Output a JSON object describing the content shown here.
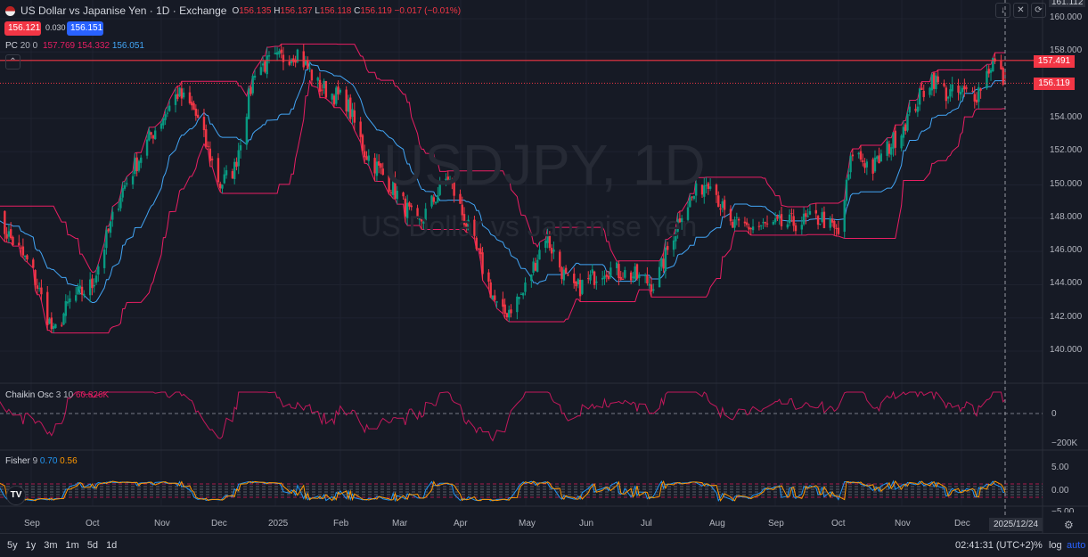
{
  "header": {
    "title": "US Dollar vs Japanise Yen · 1D · Exchange",
    "o_label": "O",
    "o": "156.135",
    "h_label": "H",
    "h": "156.137",
    "l_label": "L",
    "l": "156.118",
    "c_label": "C",
    "c": "156.119",
    "change": "−0.017 (−0.01%)",
    "sell": "156.121",
    "spread": "0.030",
    "buy": "156.151"
  },
  "watermark": {
    "symbol": "USDJPY, 1D",
    "name": "US Dollar vs Japanise Yen"
  },
  "indicators": {
    "pc": {
      "label": "PC",
      "params": "20 0",
      "upper": "157.769",
      "lower": "154.332",
      "basis": "156.051"
    },
    "chaikin": {
      "label": "Chaikin Osc",
      "params": "3 10",
      "value": "60.826K"
    },
    "fisher": {
      "label": "Fisher",
      "params": "9",
      "v1": "0.70",
      "v2": "0.56"
    }
  },
  "price_axis": {
    "top": "161.112",
    "ticks": [
      "160.000",
      "158.000",
      "154.000",
      "152.000",
      "150.000",
      "148.000",
      "146.000",
      "144.000",
      "142.000",
      "140.000"
    ],
    "high_line": "157.491",
    "last": "156.119"
  },
  "chaikin_axis": [
    "0",
    "−200K"
  ],
  "fisher_axis": [
    "5.00",
    "0.00",
    "−5.00"
  ],
  "time_axis": [
    "Sep",
    "Oct",
    "Nov",
    "Dec",
    "2025",
    "Feb",
    "Mar",
    "Apr",
    "May",
    "Jun",
    "Jul",
    "Aug",
    "Sep",
    "Oct",
    "Nov",
    "Dec"
  ],
  "crosshair_date": "2025/12/24",
  "bottom": {
    "ranges": [
      "5y",
      "1y",
      "3m",
      "1m",
      "5d",
      "1d"
    ],
    "time": "02:41:31 (UTC+2)",
    "pct": "%",
    "log": "log",
    "auto": "auto"
  },
  "colors": {
    "up": "#089981",
    "down": "#f23645",
    "channel": "#e91e63",
    "basis": "#42a5f5",
    "fisher1": "#2196f3",
    "fisher2": "#ff9800"
  },
  "chart_data": {
    "type": "candlestick",
    "ylim": [
      139,
      161.1
    ],
    "approx_closes": [
      [
        "2024-08-15",
        148
      ],
      [
        "2024-09-01",
        145
      ],
      [
        "2024-09-12",
        141
      ],
      [
        "2024-09-20",
        143
      ],
      [
        "2024-10-01",
        144
      ],
      [
        "2024-10-15",
        149.5
      ],
      [
        "2024-10-30",
        153
      ],
      [
        "2024-11-12",
        155.5
      ],
      [
        "2024-11-20",
        154.5
      ],
      [
        "2024-12-03",
        150
      ],
      [
        "2024-12-10",
        151
      ],
      [
        "2024-12-20",
        157
      ],
      [
        "2025-01-10",
        158
      ],
      [
        "2025-01-20",
        156
      ],
      [
        "2025-02-03",
        155
      ],
      [
        "2025-02-12",
        152
      ],
      [
        "2025-02-25",
        150
      ],
      [
        "2025-03-10",
        147.5
      ],
      [
        "2025-03-25",
        150.5
      ],
      [
        "2025-04-05",
        147
      ],
      [
        "2025-04-20",
        142
      ],
      [
        "2025-05-01",
        143.5
      ],
      [
        "2025-05-12",
        147
      ],
      [
        "2025-05-25",
        143.5
      ],
      [
        "2025-06-10",
        145
      ],
      [
        "2025-06-25",
        144.5
      ],
      [
        "2025-07-05",
        144
      ],
      [
        "2025-07-18",
        148.5
      ],
      [
        "2025-08-01",
        150.5
      ],
      [
        "2025-08-10",
        147.5
      ],
      [
        "2025-09-01",
        147.5
      ],
      [
        "2025-09-25",
        148
      ],
      [
        "2025-10-03",
        147
      ],
      [
        "2025-10-10",
        152
      ],
      [
        "2025-10-20",
        151
      ],
      [
        "2025-11-01",
        153
      ],
      [
        "2025-11-18",
        156.5
      ],
      [
        "2025-11-25",
        155.5
      ],
      [
        "2025-12-10",
        155.5
      ],
      [
        "2025-12-18",
        157.5
      ],
      [
        "2025-12-24",
        156.12
      ]
    ]
  }
}
